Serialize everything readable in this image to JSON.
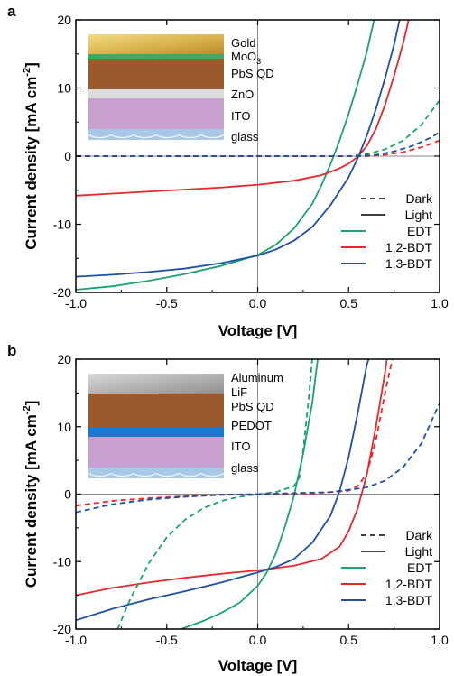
{
  "chart_data": [
    {
      "type": "line",
      "panel_label": "a",
      "xlabel": "Voltage [V]",
      "ylabel_parts": [
        "Current density [mA cm",
        "-2",
        "]"
      ],
      "xlim": [
        -1.0,
        1.0
      ],
      "ylim": [
        -20,
        20
      ],
      "x_ticks": [
        -1.0,
        -0.5,
        0.0,
        0.5,
        1.0
      ],
      "x_tick_labels": [
        "-1.0",
        "-0.5",
        "0.0",
        "0.5",
        "1.0"
      ],
      "y_ticks": [
        -20,
        -10,
        0,
        10,
        20
      ],
      "y_tick_labels": [
        "-20",
        "-10",
        "0",
        "10",
        "20"
      ],
      "reference_lines": [
        "x=0",
        "y=0"
      ],
      "legend": {
        "placement": "lower-right",
        "style_entries": [
          {
            "label": "Dark",
            "style": "dashed"
          },
          {
            "label": "Light",
            "style": "solid"
          }
        ],
        "color_entries": [
          {
            "label": "EDT",
            "color": "#1aa36b"
          },
          {
            "label": "1,2-BDT",
            "color": "#e8262c"
          },
          {
            "label": "1,3-BDT",
            "color": "#1f4fa3"
          }
        ]
      },
      "inset_stack": [
        {
          "label": "Gold",
          "color": "#d8b24a"
        },
        {
          "label": "MoO",
          "label_sub": "3",
          "color": "#3fa86a"
        },
        {
          "label": "PbS QD",
          "color": "#9a5a2c"
        },
        {
          "label": "ZnO",
          "color": "#dcdcdc"
        },
        {
          "label": "ITO",
          "color": "#c8a0d0"
        },
        {
          "label": "glass",
          "color": "#a9c8e8"
        }
      ],
      "series": [
        {
          "device": "EDT",
          "condition": "Light",
          "color": "#1aa36b",
          "dash": false,
          "points": [
            [
              -1.0,
              -19.6
            ],
            [
              -0.8,
              -19.1
            ],
            [
              -0.6,
              -18.3
            ],
            [
              -0.4,
              -17.3
            ],
            [
              -0.2,
              -16.1
            ],
            [
              0.0,
              -14.5
            ],
            [
              0.1,
              -13.0
            ],
            [
              0.2,
              -10.6
            ],
            [
              0.3,
              -7.0
            ],
            [
              0.35,
              -4.3
            ],
            [
              0.4,
              -1.2
            ],
            [
              0.45,
              2.3
            ],
            [
              0.5,
              6.2
            ],
            [
              0.55,
              10.6
            ],
            [
              0.6,
              15.3
            ],
            [
              0.64,
              20.0
            ]
          ]
        },
        {
          "device": "1,2-BDT",
          "condition": "Light",
          "color": "#e8262c",
          "dash": false,
          "points": [
            [
              -1.0,
              -5.8
            ],
            [
              -0.8,
              -5.5
            ],
            [
              -0.6,
              -5.2
            ],
            [
              -0.4,
              -4.9
            ],
            [
              -0.2,
              -4.6
            ],
            [
              0.0,
              -4.2
            ],
            [
              0.2,
              -3.6
            ],
            [
              0.35,
              -2.8
            ],
            [
              0.45,
              -1.8
            ],
            [
              0.5,
              -1.1
            ],
            [
              0.55,
              -0.1
            ],
            [
              0.6,
              1.5
            ],
            [
              0.65,
              4.0
            ],
            [
              0.7,
              7.5
            ],
            [
              0.75,
              11.8
            ],
            [
              0.8,
              16.6
            ],
            [
              0.83,
              20.0
            ]
          ]
        },
        {
          "device": "1,3-BDT",
          "condition": "Light",
          "color": "#1f4fa3",
          "dash": false,
          "points": [
            [
              -1.0,
              -17.7
            ],
            [
              -0.8,
              -17.4
            ],
            [
              -0.6,
              -17.0
            ],
            [
              -0.4,
              -16.5
            ],
            [
              -0.2,
              -15.7
            ],
            [
              0.0,
              -14.6
            ],
            [
              0.1,
              -13.7
            ],
            [
              0.2,
              -12.4
            ],
            [
              0.3,
              -10.4
            ],
            [
              0.4,
              -7.2
            ],
            [
              0.5,
              -3.1
            ],
            [
              0.55,
              -0.3
            ],
            [
              0.6,
              3.0
            ],
            [
              0.65,
              6.9
            ],
            [
              0.7,
              11.4
            ],
            [
              0.75,
              16.4
            ],
            [
              0.78,
              20.0
            ]
          ]
        },
        {
          "device": "EDT",
          "condition": "Dark",
          "color": "#1aa36b",
          "dash": true,
          "points": [
            [
              -1.0,
              0.0
            ],
            [
              0.5,
              0.0
            ],
            [
              0.6,
              0.3
            ],
            [
              0.7,
              1.0
            ],
            [
              0.8,
              2.3
            ],
            [
              0.9,
              4.6
            ],
            [
              1.0,
              8.2
            ]
          ]
        },
        {
          "device": "1,2-BDT",
          "condition": "Dark",
          "color": "#e8262c",
          "dash": true,
          "points": [
            [
              -1.0,
              0.0
            ],
            [
              0.6,
              0.0
            ],
            [
              0.7,
              0.2
            ],
            [
              0.8,
              0.6
            ],
            [
              0.9,
              1.3
            ],
            [
              1.0,
              2.3
            ]
          ]
        },
        {
          "device": "1,3-BDT",
          "condition": "Dark",
          "color": "#1f4fa3",
          "dash": true,
          "points": [
            [
              -1.0,
              0.0
            ],
            [
              0.55,
              0.0
            ],
            [
              0.65,
              0.2
            ],
            [
              0.75,
              0.7
            ],
            [
              0.85,
              1.5
            ],
            [
              0.95,
              2.7
            ],
            [
              1.0,
              3.5
            ]
          ]
        }
      ]
    },
    {
      "type": "line",
      "panel_label": "b",
      "xlabel": "Voltage [V]",
      "ylabel_parts": [
        "Current density [mA cm",
        "-2",
        "]"
      ],
      "xlim": [
        -1.0,
        1.0
      ],
      "ylim": [
        -20,
        20
      ],
      "x_ticks": [
        -1.0,
        -0.5,
        0.0,
        0.5,
        1.0
      ],
      "x_tick_labels": [
        "-1.0",
        "-0.5",
        "0.0",
        "0.5",
        "1.0"
      ],
      "y_ticks": [
        -20,
        -10,
        0,
        10,
        20
      ],
      "y_tick_labels": [
        "-20",
        "-10",
        "0",
        "10",
        "20"
      ],
      "reference_lines": [
        "x=0",
        "y=0"
      ],
      "legend": {
        "placement": "lower-right",
        "style_entries": [
          {
            "label": "Dark",
            "style": "dashed"
          },
          {
            "label": "Light",
            "style": "solid"
          }
        ],
        "color_entries": [
          {
            "label": "EDT",
            "color": "#1aa36b"
          },
          {
            "label": "1,2-BDT",
            "color": "#e8262c"
          },
          {
            "label": "1,3-BDT",
            "color": "#1f4fa3"
          }
        ]
      },
      "inset_stack": [
        {
          "label": "Aluminum",
          "color": "#b0b0b0"
        },
        {
          "label": "LiF",
          "color": "#9a5a2c"
        },
        {
          "label": "PbS QD",
          "color": "#9a5a2c"
        },
        {
          "label": "PEDOT",
          "color": "#1f78c8"
        },
        {
          "label": "ITO",
          "color": "#c8a0d0"
        },
        {
          "label": "glass",
          "color": "#a9c8e8"
        }
      ],
      "series": [
        {
          "device": "EDT",
          "condition": "Light",
          "color": "#1aa36b",
          "dash": false,
          "points": [
            [
              -0.42,
              -20.0
            ],
            [
              -0.3,
              -18.8
            ],
            [
              -0.2,
              -17.6
            ],
            [
              -0.1,
              -16.1
            ],
            [
              0.0,
              -13.6
            ],
            [
              0.05,
              -11.6
            ],
            [
              0.1,
              -8.8
            ],
            [
              0.15,
              -4.8
            ],
            [
              0.2,
              -0.2
            ],
            [
              0.25,
              6.0
            ],
            [
              0.3,
              13.5
            ],
            [
              0.33,
              20.0
            ]
          ]
        },
        {
          "device": "1,2-BDT",
          "condition": "Light",
          "color": "#e8262c",
          "dash": false,
          "points": [
            [
              -1.0,
              -15.0
            ],
            [
              -0.8,
              -13.9
            ],
            [
              -0.6,
              -13.1
            ],
            [
              -0.4,
              -12.4
            ],
            [
              -0.2,
              -11.8
            ],
            [
              0.0,
              -11.3
            ],
            [
              0.2,
              -10.6
            ],
            [
              0.35,
              -9.6
            ],
            [
              0.45,
              -7.8
            ],
            [
              0.5,
              -5.5
            ],
            [
              0.55,
              -2.1
            ],
            [
              0.6,
              2.9
            ],
            [
              0.65,
              10.0
            ],
            [
              0.7,
              18.0
            ],
            [
              0.71,
              20.0
            ]
          ]
        },
        {
          "device": "1,3-BDT",
          "condition": "Light",
          "color": "#1f4fa3",
          "dash": false,
          "points": [
            [
              -1.0,
              -18.7
            ],
            [
              -0.8,
              -17.0
            ],
            [
              -0.6,
              -15.6
            ],
            [
              -0.4,
              -14.4
            ],
            [
              -0.2,
              -13.1
            ],
            [
              0.0,
              -11.6
            ],
            [
              0.1,
              -10.8
            ],
            [
              0.2,
              -9.6
            ],
            [
              0.3,
              -7.2
            ],
            [
              0.4,
              -3.2
            ],
            [
              0.45,
              0.4
            ],
            [
              0.5,
              5.5
            ],
            [
              0.55,
              12.0
            ],
            [
              0.6,
              19.2
            ],
            [
              0.61,
              20.0
            ]
          ]
        },
        {
          "device": "EDT",
          "condition": "Dark",
          "color": "#1aa36b",
          "dash": true,
          "points": [
            [
              -0.77,
              -20.0
            ],
            [
              -0.7,
              -15.5
            ],
            [
              -0.6,
              -10.3
            ],
            [
              -0.5,
              -6.4
            ],
            [
              -0.4,
              -3.8
            ],
            [
              -0.3,
              -2.1
            ],
            [
              -0.2,
              -1.0
            ],
            [
              -0.1,
              -0.4
            ],
            [
              0.0,
              0.0
            ],
            [
              0.1,
              0.3
            ],
            [
              0.2,
              1.2
            ],
            [
              0.23,
              2.5
            ],
            [
              0.25,
              6.5
            ],
            [
              0.28,
              14.0
            ],
            [
              0.3,
              20.0
            ]
          ]
        },
        {
          "device": "1,2-BDT",
          "condition": "Dark",
          "color": "#e8262c",
          "dash": true,
          "points": [
            [
              -1.0,
              -1.7
            ],
            [
              -0.8,
              -1.0
            ],
            [
              -0.6,
              -0.6
            ],
            [
              -0.4,
              -0.3
            ],
            [
              -0.2,
              -0.1
            ],
            [
              0.0,
              0.0
            ],
            [
              0.3,
              0.1
            ],
            [
              0.5,
              0.5
            ],
            [
              0.55,
              1.2
            ],
            [
              0.6,
              3.0
            ],
            [
              0.65,
              8.0
            ],
            [
              0.7,
              15.0
            ],
            [
              0.74,
              20.0
            ]
          ]
        },
        {
          "device": "1,3-BDT",
          "condition": "Dark",
          "color": "#1f4fa3",
          "dash": true,
          "points": [
            [
              -1.0,
              -2.7
            ],
            [
              -0.8,
              -1.5
            ],
            [
              -0.6,
              -0.8
            ],
            [
              -0.4,
              -0.4
            ],
            [
              -0.2,
              -0.1
            ],
            [
              0.0,
              0.0
            ],
            [
              0.4,
              0.3
            ],
            [
              0.6,
              1.0
            ],
            [
              0.7,
              2.0
            ],
            [
              0.8,
              4.0
            ],
            [
              0.9,
              7.5
            ],
            [
              0.95,
              10.5
            ],
            [
              1.0,
              13.5
            ]
          ]
        }
      ]
    }
  ]
}
